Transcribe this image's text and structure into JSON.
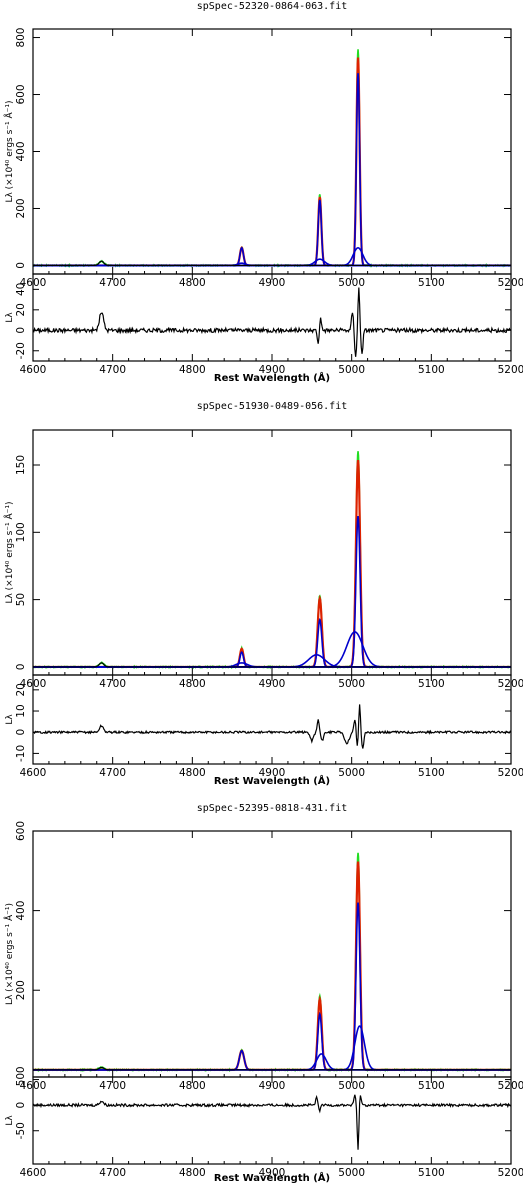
{
  "colors": {
    "data": "#22dd22",
    "model": "#dd2200",
    "component": "#0000cc",
    "residual": "#000000"
  },
  "chart_data": [
    {
      "type": "line",
      "title": "spSpec-52320-0864-063.fit",
      "xlabel": "Rest Wavelength (Å)",
      "ylabel": "Lλ (×10⁴⁰ ergs s⁻¹ Å⁻¹)",
      "xlim": [
        4600,
        5200
      ],
      "ylim": [
        -30,
        830
      ],
      "yticks": [
        0,
        200,
        400,
        600,
        800
      ],
      "xticks": [
        4600,
        4700,
        4800,
        4900,
        5000,
        5100,
        5200
      ],
      "grid": false,
      "lines": [
        {
          "center": 4686,
          "amp": 15,
          "sigma": 3.0,
          "role": "heii"
        },
        {
          "center": 4862,
          "amp": 65,
          "sigma": 2.2,
          "role": "hbeta"
        },
        {
          "center": 4960,
          "amp": 250,
          "sigma": 2.0,
          "role": "oiii_4959"
        },
        {
          "center": 5008,
          "amp": 760,
          "sigma": 2.0,
          "role": "oiii_5007"
        }
      ],
      "components": [
        {
          "center": 4862,
          "amp": 62,
          "sigma": 2.2
        },
        {
          "center": 4862,
          "amp": 8,
          "sigma": 5.0
        },
        {
          "center": 4960,
          "amp": 230,
          "sigma": 2.0
        },
        {
          "center": 4960,
          "amp": 22,
          "sigma": 6.0
        },
        {
          "center": 5008,
          "amp": 675,
          "sigma": 2.0
        },
        {
          "center": 5008,
          "amp": 62,
          "sigma": 6.0
        }
      ],
      "residual": {
        "ylabel": "Lλ",
        "ylim": [
          -30,
          55
        ],
        "yticks": [
          -20,
          0,
          20,
          40
        ],
        "features": [
          {
            "center": 4686,
            "amp": 18,
            "sigma": 2.5
          },
          {
            "center": 4958,
            "amp": -14,
            "sigma": 1.0
          },
          {
            "center": 4961,
            "amp": 14,
            "sigma": 1.0
          },
          {
            "center": 5001,
            "amp": 18,
            "sigma": 1.2
          },
          {
            "center": 5005,
            "amp": -25,
            "sigma": 1.2
          },
          {
            "center": 5009,
            "amp": 42,
            "sigma": 1.0
          },
          {
            "center": 5013,
            "amp": -22,
            "sigma": 1.2
          }
        ],
        "noise": 2.0
      }
    },
    {
      "type": "line",
      "title": "spSpec-51930-0489-056.fit",
      "xlabel": "Rest Wavelength (Å)",
      "ylabel": "Lλ (×10⁴⁰ ergs s⁻¹ Å⁻¹)",
      "xlim": [
        4600,
        5200
      ],
      "ylim": [
        -6,
        176
      ],
      "yticks": [
        0,
        50,
        100,
        150
      ],
      "xticks": [
        4600,
        4700,
        4800,
        4900,
        5000,
        5100,
        5200
      ],
      "grid": false,
      "lines": [
        {
          "center": 4686,
          "amp": 3,
          "sigma": 3.0,
          "role": "heii"
        },
        {
          "center": 4862,
          "amp": 14,
          "sigma": 2.3,
          "role": "hbeta"
        },
        {
          "center": 4960,
          "amp": 53,
          "sigma": 2.6,
          "role": "oiii_4959"
        },
        {
          "center": 5008,
          "amp": 160,
          "sigma": 2.6,
          "role": "oiii_5007"
        }
      ],
      "components": [
        {
          "center": 4862,
          "amp": 11,
          "sigma": 2.3
        },
        {
          "center": 4862,
          "amp": 3,
          "sigma": 7.0
        },
        {
          "center": 4960,
          "amp": 35,
          "sigma": 2.6
        },
        {
          "center": 4956,
          "amp": 9,
          "sigma": 10.0
        },
        {
          "center": 5008,
          "amp": 112,
          "sigma": 2.6
        },
        {
          "center": 5004,
          "amp": 26,
          "sigma": 10.0
        }
      ],
      "residual": {
        "ylabel": "Lλ",
        "ylim": [
          -15,
          27
        ],
        "yticks": [
          -10,
          0,
          10,
          20
        ],
        "features": [
          {
            "center": 4686,
            "amp": 3,
            "sigma": 2.5
          },
          {
            "center": 4950,
            "amp": -4,
            "sigma": 2.0
          },
          {
            "center": 4958,
            "amp": 6,
            "sigma": 1.2
          },
          {
            "center": 4963,
            "amp": -4,
            "sigma": 1.5
          },
          {
            "center": 4994,
            "amp": -5,
            "sigma": 3.0
          },
          {
            "center": 5004,
            "amp": 6,
            "sigma": 1.3
          },
          {
            "center": 5007,
            "amp": -7,
            "sigma": 1.0
          },
          {
            "center": 5010,
            "amp": 13,
            "sigma": 1.0
          },
          {
            "center": 5014,
            "amp": -8,
            "sigma": 1.3
          }
        ],
        "noise": 0.5
      }
    },
    {
      "type": "line",
      "title": "spSpec-52395-0818-431.fit",
      "xlabel": "Rest Wavelength (Å)",
      "ylabel": "Lλ (×10⁴⁰ ergs s⁻¹ Å⁻¹)",
      "xlim": [
        4600,
        5200
      ],
      "ylim": [
        -18,
        600
      ],
      "yticks": [
        0,
        200,
        400,
        600
      ],
      "xticks": [
        4600,
        4700,
        4800,
        4900,
        5000,
        5100,
        5200
      ],
      "grid": false,
      "lines": [
        {
          "center": 4686,
          "amp": 6,
          "sigma": 3.0,
          "role": "heii"
        },
        {
          "center": 4862,
          "amp": 50,
          "sigma": 3.0,
          "role": "hbeta"
        },
        {
          "center": 4960,
          "amp": 185,
          "sigma": 2.5,
          "role": "oiii_4959"
        },
        {
          "center": 5008,
          "amp": 545,
          "sigma": 2.5,
          "role": "oiii_5007"
        }
      ],
      "components": [
        {
          "center": 4862,
          "amp": 48,
          "sigma": 3.0
        },
        {
          "center": 4960,
          "amp": 140,
          "sigma": 2.5
        },
        {
          "center": 4962,
          "amp": 40,
          "sigma": 6.0
        },
        {
          "center": 5008,
          "amp": 420,
          "sigma": 2.5
        },
        {
          "center": 5010,
          "amp": 110,
          "sigma": 6.0
        }
      ],
      "residual": {
        "ylabel": "Lλ",
        "ylim": [
          -115,
          55
        ],
        "yticks": [
          -50,
          0,
          50
        ],
        "features": [
          {
            "center": 4686,
            "amp": 8,
            "sigma": 2.5
          },
          {
            "center": 4956,
            "amp": 14,
            "sigma": 1.2
          },
          {
            "center": 4960,
            "amp": -10,
            "sigma": 1.2
          },
          {
            "center": 5004,
            "amp": 20,
            "sigma": 1.2
          },
          {
            "center": 5008,
            "amp": -90,
            "sigma": 1.0
          },
          {
            "center": 5011,
            "amp": 20,
            "sigma": 1.2
          }
        ],
        "noise": 2.5
      }
    }
  ]
}
